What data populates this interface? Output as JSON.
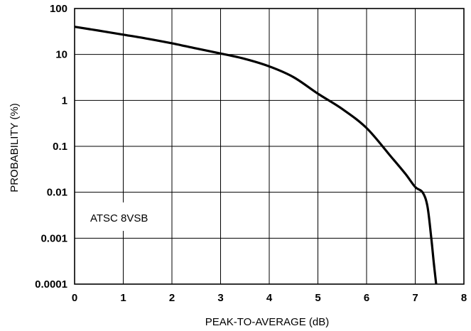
{
  "chart_data": {
    "type": "line",
    "title": "",
    "xlabel": "PEAK-TO-AVERAGE (dB)",
    "ylabel": "PROBABILITY (%)",
    "xlim": [
      0,
      8
    ],
    "ylim": [
      0.0001,
      100
    ],
    "y_scale": "log",
    "grid": true,
    "x_ticks": [
      "0",
      "1",
      "2",
      "3",
      "4",
      "5",
      "6",
      "7",
      "8"
    ],
    "y_ticks": [
      "0.0001",
      "0.001",
      "0.01",
      "0.1",
      "1",
      "10",
      "100"
    ],
    "annotation": "ATSC 8VSB",
    "series": [
      {
        "line_color": "#000000",
        "x": [
          0,
          0.5,
          1,
          1.5,
          2,
          2.5,
          3,
          3.5,
          4,
          4.5,
          5,
          5.5,
          6,
          6.5,
          6.8,
          7.0,
          7.15,
          7.25,
          7.33,
          7.38,
          7.43
        ],
        "y": [
          40,
          33,
          27,
          22,
          17.5,
          13.5,
          10.5,
          8,
          5.5,
          3.2,
          1.4,
          0.65,
          0.25,
          0.06,
          0.025,
          0.013,
          0.01,
          0.005,
          0.001,
          0.0003,
          0.0001
        ]
      }
    ]
  }
}
